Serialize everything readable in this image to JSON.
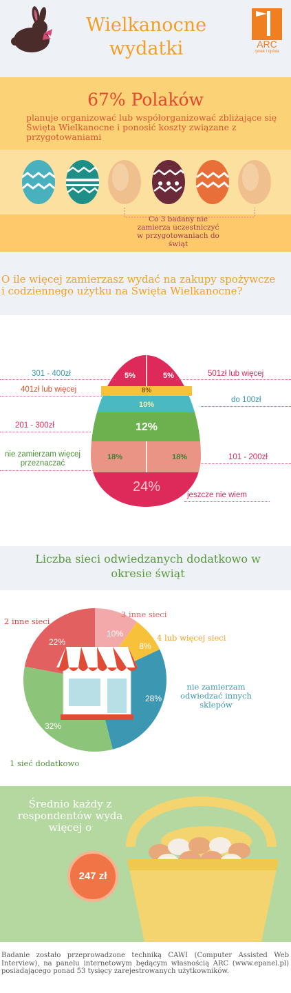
{
  "header": {
    "title_line1": "Wielkanocne",
    "title_line2": "wydatki",
    "logo_text": "ARC",
    "logo_sub": "rynek i opinia"
  },
  "intro": {
    "headline": "67% Polaków",
    "text": "planuje organizować lub współorganizować zbliżające się Święta Wielkanocne i ponosić koszty związane z przygotowaniami",
    "note": "Co 3 badany nie zamierza uczestniczyć w przygotowaniach do świąt"
  },
  "spending": {
    "question": "O ile więcej zamierzasz wydać na zakupy spożywcze i codziennego użytku na Święta Wielkanocne?",
    "chart_data": {
      "type": "bar",
      "categories": [
        "301 - 400zł",
        "501zł lub więcej",
        "401zł lub więcej",
        "do 100zł",
        "201 - 300zł",
        "nie zamierzam więcej przeznaczać",
        "101 - 200zł",
        "jeszcze nie wiem"
      ],
      "values": [
        5,
        5,
        8,
        10,
        12,
        18,
        18,
        24
      ],
      "value_labels": [
        "5%",
        "5%",
        "8%",
        "10%",
        "12%",
        "18%",
        "18%",
        "24%"
      ],
      "colors": [
        "#dd2a5a",
        "#dd2a5a",
        "#f7c23a",
        "#4ab9c2",
        "#6cb14e",
        "#ea9485",
        "#ea9485",
        "#dd2a5a"
      ]
    }
  },
  "stores": {
    "title": "Liczba sieci odwiedzanych dodatkowo w okresie świąt",
    "chart_data": {
      "type": "pie",
      "categories": [
        "3 inne sieci",
        "4 lub więcej sieci",
        "nie zamierzam odwiedzać innych sklepów",
        "1 sieć dodatkowo",
        "2 inne sieci"
      ],
      "values": [
        10,
        8,
        28,
        32,
        22
      ],
      "value_labels": [
        "10%",
        "8%",
        "28%",
        "32%",
        "22%"
      ],
      "colors": [
        "#f3a9a9",
        "#f7c23a",
        "#3b97b2",
        "#8cc57a",
        "#e36060"
      ]
    }
  },
  "average": {
    "text": "Średnio każdy z respondentów wyda więcej o",
    "amount": "247 zł"
  },
  "footer": {
    "text": "Badanie zostało przeprowadzone techniką CAWI (Computer Assisted Web Interview), na panelu internetowym będącym własnością ARC (www.epanel.pl) posiadającego ponad 53 tysięcy zarejestrowanych użytkowników."
  },
  "colors": {
    "accent_orange": "#f2a025",
    "pink": "#dd2a5a",
    "teal": "#3b97b2",
    "green": "#6cb14e"
  }
}
